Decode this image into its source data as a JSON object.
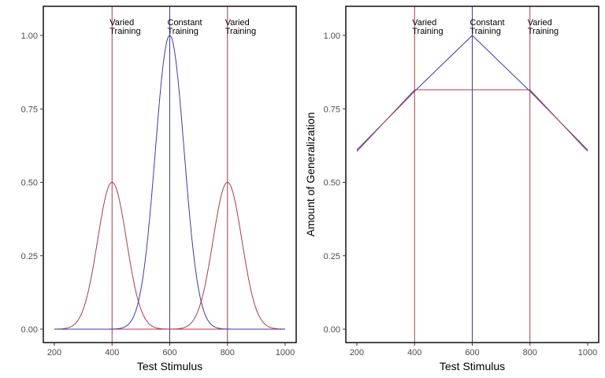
{
  "chart_data": [
    {
      "type": "line",
      "title": "",
      "xlabel": "Test Stimulus",
      "ylabel": "",
      "xlim": [
        200,
        1000
      ],
      "ylim": [
        0,
        1.0
      ],
      "xticks": [
        200,
        400,
        600,
        800,
        1000
      ],
      "yticks": [
        0.0,
        0.25,
        0.5,
        0.75,
        1.0
      ],
      "ytick_labels": [
        "0.00",
        "0.25",
        "0.50",
        "0.75",
        "1.00"
      ],
      "grid": false,
      "series": [
        {
          "color": "#a83c4b",
          "form": "gaussian",
          "center": 400,
          "amplitude": 0.5,
          "sd": 50
        },
        {
          "color": "#a83c4b",
          "form": "gaussian",
          "center": 800,
          "amplitude": 0.5,
          "sd": 50
        },
        {
          "color": "#3c3ca8",
          "form": "gaussian",
          "center": 600,
          "amplitude": 1.0,
          "sd": 50
        }
      ],
      "vlines": [
        {
          "x": 400,
          "color": "#a83c4b"
        },
        {
          "x": 600,
          "color": "#3c3ca8"
        },
        {
          "x": 800,
          "color": "#a83c4b"
        }
      ],
      "annotations": [
        {
          "x": 400,
          "line1": "Varied",
          "line2": "Training"
        },
        {
          "x": 600,
          "line1": "Constant",
          "line2": "Training"
        },
        {
          "x": 800,
          "line1": "Varied",
          "line2": "Training"
        }
      ]
    },
    {
      "type": "line",
      "title": "",
      "xlabel": "Test Stimulus",
      "ylabel": "Amount of Generalization",
      "xlim": [
        200,
        1000
      ],
      "ylim": [
        0,
        1.0
      ],
      "xticks": [
        200,
        400,
        600,
        800,
        1000
      ],
      "yticks": [
        0.0,
        0.25,
        0.5,
        0.75,
        1.0
      ],
      "ytick_labels": [
        "0.00",
        "0.25",
        "0.50",
        "0.75",
        "1.00"
      ],
      "grid": false,
      "series": [
        {
          "color": "#3c3ca8",
          "form": "points",
          "x": [
            200,
            400,
            600,
            800,
            1000
          ],
          "y": [
            0.61,
            0.81,
            1.0,
            0.81,
            0.61
          ]
        },
        {
          "color": "#a83c4b",
          "form": "points",
          "x": [
            200,
            400,
            600,
            800,
            1000
          ],
          "y": [
            0.605,
            0.815,
            0.815,
            0.815,
            0.605
          ]
        }
      ],
      "vlines": [
        {
          "x": 400,
          "color": "#a83c4b"
        },
        {
          "x": 600,
          "color": "#3c3ca8"
        },
        {
          "x": 800,
          "color": "#a83c4b"
        }
      ],
      "annotations": [
        {
          "x": 400,
          "line1": "Varied",
          "line2": "Training"
        },
        {
          "x": 600,
          "line1": "Constant",
          "line2": "Training"
        },
        {
          "x": 800,
          "line1": "Varied",
          "line2": "Training"
        }
      ]
    }
  ]
}
